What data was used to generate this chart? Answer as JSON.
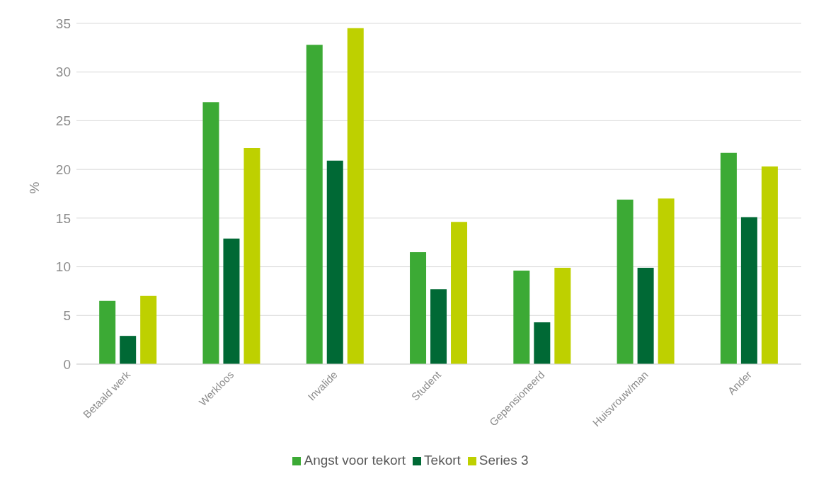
{
  "chart_data": {
    "type": "bar",
    "ylabel": "%",
    "categories": [
      "Betaald werk",
      "Werkloos",
      "Invalide",
      "Student",
      "Gepensioneerd",
      "Huisvrouw/man",
      "Ander"
    ],
    "series": [
      {
        "name": "Angst voor tekort",
        "color": "#3caa35",
        "values": [
          6.5,
          26.9,
          32.8,
          11.5,
          9.6,
          16.9,
          21.7
        ]
      },
      {
        "name": "Tekort",
        "color": "#006935",
        "values": [
          2.9,
          12.9,
          20.9,
          7.7,
          4.3,
          9.9,
          15.1
        ]
      },
      {
        "name": "Series 3",
        "color": "#bed000",
        "values": [
          7.0,
          22.2,
          34.5,
          14.6,
          9.9,
          17.0,
          20.3
        ]
      }
    ],
    "ylim": [
      0,
      35
    ],
    "yticks": [
      0,
      5,
      10,
      15,
      20,
      25,
      30,
      35
    ],
    "grid": "y",
    "legend": "bottom"
  }
}
